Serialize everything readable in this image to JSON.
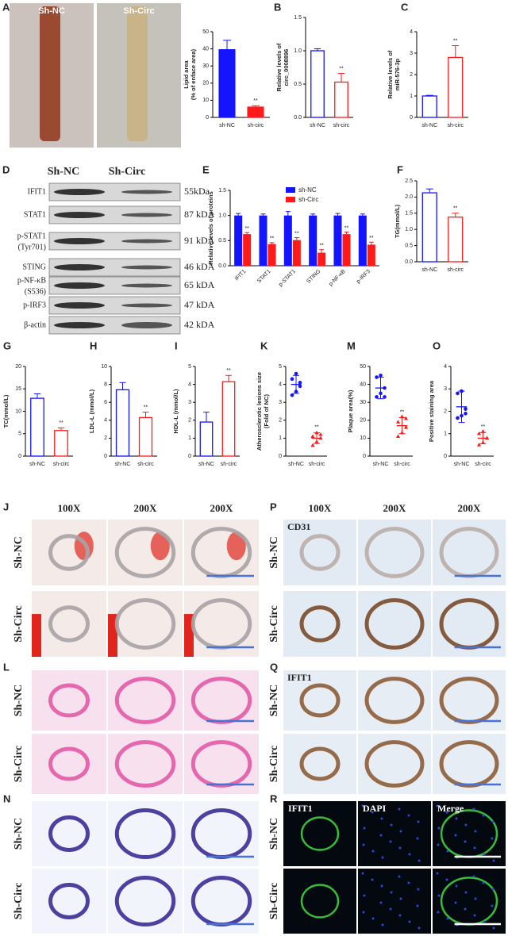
{
  "photo_a": {
    "panel": "A",
    "labels": [
      "Sh-NC",
      "Sh-Circ"
    ]
  },
  "western_blot": {
    "panel": "D",
    "headers": [
      "Sh-NC",
      "Sh-Circ"
    ],
    "rows": [
      {
        "name": "IFIT1",
        "size": "55kDa"
      },
      {
        "name": "STAT1",
        "size": "87 kDA"
      },
      {
        "name": "p-STAT1",
        "note": "(Tyr701)",
        "size": "91 kDA"
      },
      {
        "name": "STING",
        "size": "46 kDA"
      },
      {
        "name": "p-NF-κB",
        "note": "(S536)",
        "size": "65 kDA"
      },
      {
        "name": "p-IRF3",
        "size": "47 kDA"
      },
      {
        "name": "β-actin",
        "size": "42 kDA"
      }
    ]
  },
  "chart_data": [
    {
      "type": "bar",
      "ylabel": [
        "Lipid area",
        "(% of enface area)"
      ],
      "categories": [
        "sh-NC",
        "sh-circ"
      ],
      "values": [
        39.5,
        6
      ],
      "errors": [
        5.5,
        0.8
      ],
      "colors": [
        "#1414ff",
        "#ff1a1a"
      ],
      "filled": true,
      "significance": "**",
      "ylim": [
        0,
        50
      ],
      "yticks": [
        0,
        10,
        20,
        30,
        40,
        50
      ]
    },
    {
      "type": "bar",
      "panel": "B",
      "ylabel": [
        "Relative levels of",
        "circ_0008896"
      ],
      "categories": [
        "sh-NC",
        "sh-circ"
      ],
      "values": [
        1.0,
        0.53
      ],
      "errors": [
        0.03,
        0.13
      ],
      "colors": [
        "#1414ff",
        "#ff1a1a"
      ],
      "filled": false,
      "significance": "**",
      "ylim": [
        0,
        1.5
      ],
      "yticks": [
        {
          "value": 0,
          "label": "0.0"
        },
        {
          "value": 0.5,
          "label": "0.5"
        },
        {
          "value": 1,
          "label": "1.0"
        },
        {
          "value": 1.5,
          "label": "1.5"
        }
      ]
    },
    {
      "type": "bar",
      "panel": "C",
      "ylabel": [
        "Relative levels of",
        "miR-576-3p"
      ],
      "categories": [
        "sh-NC",
        "sh-circ"
      ],
      "values": [
        1.0,
        2.8
      ],
      "errors": [
        0.03,
        0.55
      ],
      "colors": [
        "#1414ff",
        "#ff1a1a"
      ],
      "filled": false,
      "significance": "**",
      "ylim": [
        0,
        4
      ],
      "yticks": [
        0,
        1,
        2,
        3,
        4
      ]
    },
    {
      "type": "grouped_bar",
      "panel": "E",
      "ylabel": [
        "Relative levels of proteins"
      ],
      "categories": [
        "IFIT1",
        "STAT1",
        "p-STAT1",
        "STING",
        "p-NF-κB",
        "p-IRF3"
      ],
      "series": [
        {
          "name": "sh-NC",
          "color": "#1414ff",
          "values": [
            1.0,
            1.0,
            1.0,
            1.0,
            1.0,
            1.0
          ],
          "errors": [
            0.04,
            0.03,
            0.08,
            0.03,
            0.04,
            0.03
          ]
        },
        {
          "name": "sh-Circ",
          "color": "#ff1a1a",
          "values": [
            0.63,
            0.43,
            0.51,
            0.26,
            0.63,
            0.42
          ],
          "errors": [
            0.03,
            0.03,
            0.05,
            0.06,
            0.04,
            0.05
          ]
        }
      ],
      "significance": "**",
      "ylim": [
        0,
        1.5
      ],
      "yticks": [
        {
          "value": 0,
          "label": "0.0"
        },
        {
          "value": 0.5,
          "label": "0.5"
        },
        {
          "value": 1,
          "label": "1.0"
        },
        {
          "value": 1.5,
          "label": "1.5"
        }
      ]
    },
    {
      "type": "bar",
      "panel": "F",
      "ylabel": [
        "TG(mmol/L)"
      ],
      "categories": [
        "sh-NC",
        "sh-circ"
      ],
      "values": [
        2.13,
        1.38
      ],
      "errors": [
        0.12,
        0.12
      ],
      "colors": [
        "#1414ff",
        "#ff1a1a"
      ],
      "filled": false,
      "significance": "**",
      "ylim": [
        0,
        2.5
      ],
      "yticks": [
        {
          "value": 0,
          "label": "0.0"
        },
        {
          "value": 0.5,
          "label": "0.5"
        },
        {
          "value": 1,
          "label": "1.0"
        },
        {
          "value": 1.5,
          "label": "1.5"
        },
        {
          "value": 2,
          "label": "2.0"
        },
        {
          "value": 2.5,
          "label": "2.5"
        }
      ]
    },
    {
      "type": "bar",
      "panel": "G",
      "ylabel": [
        "TC(mmol/L)"
      ],
      "categories": [
        "sh-NC",
        "sh-circ"
      ],
      "values": [
        12.9,
        5.7
      ],
      "errors": [
        1.0,
        0.6
      ],
      "colors": [
        "#1414ff",
        "#ff1a1a"
      ],
      "filled": false,
      "significance": "**",
      "ylim": [
        0,
        20
      ],
      "yticks": [
        0,
        5,
        10,
        15,
        20
      ]
    },
    {
      "type": "bar",
      "panel": "H",
      "ylabel": [
        "LDL-L (mmol/L)"
      ],
      "categories": [
        "sh-NC",
        "sh-circ"
      ],
      "values": [
        7.4,
        4.3
      ],
      "errors": [
        0.8,
        0.6
      ],
      "colors": [
        "#1414ff",
        "#ff1a1a"
      ],
      "filled": false,
      "significance": "**",
      "ylim": [
        0,
        10
      ],
      "yticks": [
        0,
        2,
        4,
        6,
        8,
        10
      ]
    },
    {
      "type": "bar",
      "panel": "I",
      "ylabel": [
        "HDL-L (mmol/L)"
      ],
      "categories": [
        "sh-NC",
        "sh-circ"
      ],
      "values": [
        1.9,
        4.15
      ],
      "errors": [
        0.55,
        0.35
      ],
      "colors": [
        "#1414ff",
        "#ff1a1a"
      ],
      "filled": false,
      "significance": "**",
      "ylim": [
        0,
        5
      ],
      "yticks": [
        0,
        1,
        2,
        3,
        4,
        5
      ]
    },
    {
      "type": "dot",
      "panel": "K",
      "ylabel": [
        "Atherosclerotic lesions size",
        "(Fold of NC)"
      ],
      "categories": [
        "sh-NC",
        "sh-circ"
      ],
      "values": [
        4.0,
        1.0
      ],
      "errors": [
        0.5,
        0.3
      ],
      "points": [
        [
          3.4,
          3.6,
          4.1,
          4.3,
          4.6,
          3.9
        ],
        [
          0.6,
          0.8,
          1.0,
          1.1,
          1.3,
          1.2
        ]
      ],
      "colors": [
        "#1414ff",
        "#ff1a1a"
      ],
      "significance": "**",
      "ylim": [
        0,
        5
      ],
      "yticks": [
        0,
        1,
        2,
        3,
        4,
        5
      ]
    },
    {
      "type": "dot",
      "panel": "M",
      "ylabel": [
        "Plaque area(%)"
      ],
      "categories": [
        "sh-NC",
        "sh-circ"
      ],
      "values": [
        38,
        17
      ],
      "errors": [
        6,
        4.5
      ],
      "points": [
        [
          33,
          35,
          38,
          44,
          45,
          33
        ],
        [
          11,
          13,
          16,
          19,
          22,
          21
        ]
      ],
      "colors": [
        "#1414ff",
        "#ff1a1a"
      ],
      "significance": "**",
      "ylim": [
        0,
        50
      ],
      "yticks": [
        0,
        10,
        20,
        30,
        40,
        50
      ]
    },
    {
      "type": "dot",
      "panel": "O",
      "ylabel": [
        "Positive staining area"
      ],
      "categories": [
        "sh-NC",
        "sh-circ"
      ],
      "values": [
        2.2,
        0.8
      ],
      "errors": [
        0.7,
        0.25
      ],
      "points": [
        [
          1.7,
          1.8,
          2.1,
          2.8,
          2.9,
          1.9
        ],
        [
          0.5,
          0.6,
          0.8,
          1.0,
          1.1,
          0.8
        ]
      ],
      "colors": [
        "#1414ff",
        "#ff1a1a"
      ],
      "significance": "**",
      "ylim": [
        0,
        4
      ],
      "yticks": [
        0,
        1,
        2,
        3,
        4
      ]
    }
  ],
  "micrographs": [
    {
      "panel": "J",
      "columns": [
        "100X",
        "200X",
        "200X"
      ],
      "rows": [
        "Sh-NC",
        "Sh-Circ"
      ]
    },
    {
      "panel": "L",
      "rows": [
        "Sh-NC",
        "Sh-Circ"
      ]
    },
    {
      "panel": "N",
      "rows": [
        "Sh-NC",
        "Sh-Circ"
      ]
    },
    {
      "panel": "P",
      "columns": [
        "100X",
        "200X",
        "200X"
      ],
      "rows": [
        "Sh-NC",
        "Sh-Circ"
      ],
      "stain": "CD31"
    },
    {
      "panel": "Q",
      "rows": [
        "Sh-NC",
        "Sh-Circ"
      ],
      "stain": "IFIT1"
    },
    {
      "panel": "R",
      "rows": [
        "Sh-NC",
        "Sh-Circ"
      ],
      "channels": [
        "IFIT1",
        "DAPI",
        "Merge"
      ]
    }
  ]
}
